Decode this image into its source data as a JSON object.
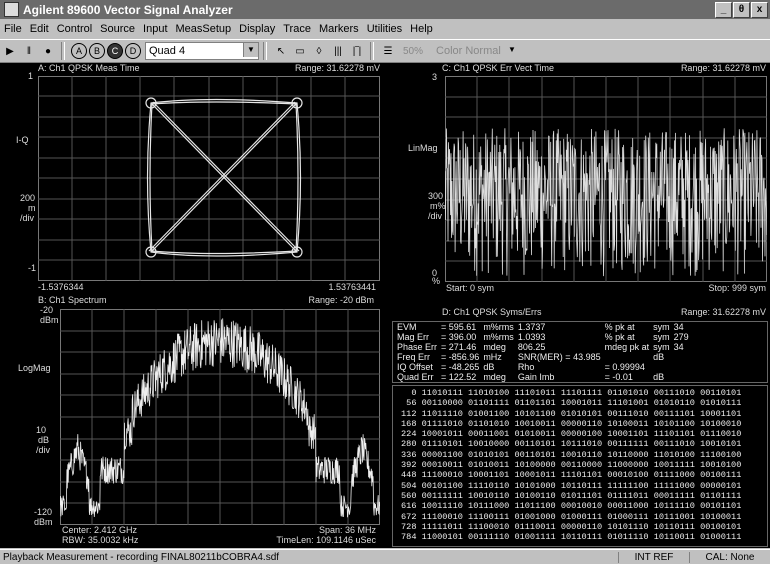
{
  "window": {
    "title": "Agilent 89600 Vector Signal Analyzer",
    "btn_min": "_",
    "btn_max": "θ",
    "btn_close": "x"
  },
  "menu": [
    "File",
    "Edit",
    "Control",
    "Source",
    "Input",
    "MeasSetup",
    "Display",
    "Trace",
    "Markers",
    "Utilities",
    "Help"
  ],
  "toolbar": {
    "play": "▶",
    "pause": "‖",
    "stop": "●",
    "a": "A",
    "b": "B",
    "c": "C",
    "d": "D",
    "layout": "Quad 4",
    "pointer": "↖",
    "zoom": "▭",
    "marker": "◊",
    "bars1": "|||",
    "bars2": "|‾|",
    "level": "50%",
    "color": "Color Normal"
  },
  "panelA": {
    "title": "A: Ch1 QPSK Meas Time",
    "range": "Range: 31.62278 mV",
    "ytop": "1",
    "yname": "I-Q",
    "scale1": "200",
    "scale2": "m",
    "scale3": "/div",
    "ybot": "-1",
    "xleft": "-1.5376344",
    "xright": "1.53763441"
  },
  "panelB": {
    "title": "B: Ch1 Spectrum",
    "range": "Range: -20 dBm",
    "ytop1": "-20",
    "ytop2": "dBm",
    "yname": "LogMag",
    "scale1": "10",
    "scale2": "dB",
    "scale3": "/div",
    "ybot1": "-120",
    "ybot2": "dBm",
    "center": "Center: 2.412 GHz",
    "rbw": "RBW: 35.0032 kHz",
    "span": "Span: 36 MHz",
    "timelen": "TimeLen: 109.1146 uSec"
  },
  "panelC": {
    "title": "C: Ch1 QPSK Err Vect Time",
    "range": "Range: 31.62278 mV",
    "ytop": "3",
    "yname": "LinMag",
    "scale1": "300",
    "scale2": "m%",
    "scale3": "/div",
    "ybot": "0",
    "ybot2": "%",
    "start": "Start: 0   sym",
    "stop": "Stop: 999   sym"
  },
  "panelD": {
    "title": "D: Ch1 QPSK Syms/Errs",
    "range": "Range: 31.62278 mV",
    "stats": [
      [
        "EVM",
        "= 595.61",
        "m%rms",
        "1.3737",
        "% pk  at",
        "sym",
        "34"
      ],
      [
        "Mag Err",
        "= 396.00",
        "m%rms",
        "1.0393",
        "% pk  at",
        "sym",
        "279"
      ],
      [
        "Phase Err",
        "= 271.46",
        "mdeg",
        "806.25",
        "mdeg pk  at",
        "sym",
        "34"
      ],
      [
        "Freq Err",
        "= -856.96",
        "mHz",
        "SNR(MER) = 43.985",
        "",
        "dB",
        ""
      ],
      [
        "IQ Offset",
        "= -48.265",
        "dB",
        "Rho",
        "= 0.99994",
        "",
        ""
      ],
      [
        "Quad Err",
        "= 122.52",
        "mdeg",
        "Gain Imb",
        "= -0.01",
        "dB",
        ""
      ]
    ],
    "rows": [
      "  0 11010111 11010100 11101011 11101111 01101010 00111010 00110101",
      " 56 00110000 01101111 01101101 10001011 11101001 01010110 01010111",
      "112 11011110 01001100 10101100 01010101 00111010 00111101 10001101",
      "168 01111010 01101010 10010011 00000110 10100011 10101100 10100010",
      "224 10001011 00011001 01010011 00000100 10001101 11101101 01110010",
      "280 01110101 10010000 00110101 10111010 00111111 00111010 10010101",
      "336 00001100 01010101 00110101 10010110 10110000 11010100 11100100",
      "392 00010011 01010011 10100000 00110000 11000000 10011111 10010100",
      "448 11100010 10001101 10001011 11101101 00010100 01111000 00100111",
      "504 00101100 11110110 10101000 10110111 11111100 11111000 00000101",
      "560 00111111 10010110 10100110 01011101 01111011 00011111 01101111",
      "616 10011110 10111000 11011100 00010010 00011000 10111110 00101101",
      "672 11100010 11100111 01001000 01000111 01000111 10111001 10100011",
      "728 11111011 11100010 01110011 00000110 10101110 10110111 00100101",
      "784 11000101 00111110 01001111 10110111 01011110 10110011 01000111"
    ]
  },
  "status": {
    "text": "Playback Measurement - recording FINAL80211bCOBRA4.sdf",
    "ref": "INT REF",
    "cal": "CAL: None"
  }
}
